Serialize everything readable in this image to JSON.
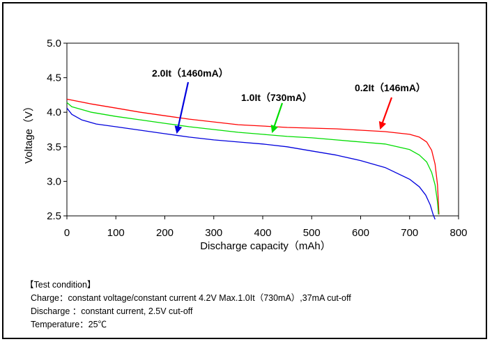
{
  "chart_data": {
    "type": "line",
    "xlabel": "Discharge capacity（mAh）",
    "ylabel": "Voltage（V）",
    "xlim": [
      0,
      800
    ],
    "ylim": [
      2.5,
      5.0
    ],
    "xticks": [
      "0",
      "100",
      "200",
      "300",
      "400",
      "500",
      "600",
      "700",
      "800"
    ],
    "yticks": [
      "2.5",
      "3.0",
      "3.5",
      "4.0",
      "4.5",
      "5.0"
    ],
    "grid": false,
    "series": [
      {
        "name": "0.2It（146mA）",
        "color": "#ff0000",
        "x": [
          0,
          50,
          100,
          150,
          200,
          250,
          300,
          350,
          400,
          450,
          500,
          550,
          600,
          650,
          700,
          720,
          735,
          745,
          752,
          757,
          760
        ],
        "y": [
          4.19,
          4.12,
          4.06,
          4.0,
          3.95,
          3.9,
          3.86,
          3.82,
          3.8,
          3.78,
          3.77,
          3.76,
          3.74,
          3.72,
          3.68,
          3.64,
          3.57,
          3.45,
          3.25,
          2.95,
          2.52
        ]
      },
      {
        "name": "1.0It（730mA）",
        "color": "#00dd00",
        "x": [
          0,
          10,
          50,
          100,
          150,
          200,
          250,
          300,
          350,
          400,
          450,
          500,
          550,
          600,
          650,
          700,
          720,
          735,
          745,
          752,
          757,
          759
        ],
        "y": [
          4.14,
          4.08,
          4.0,
          3.94,
          3.89,
          3.84,
          3.79,
          3.75,
          3.71,
          3.68,
          3.65,
          3.63,
          3.6,
          3.57,
          3.54,
          3.46,
          3.38,
          3.28,
          3.13,
          2.95,
          2.7,
          2.52
        ]
      },
      {
        "name": "2.0It（1460mA）",
        "color": "#0000dd",
        "x": [
          0,
          10,
          30,
          60,
          100,
          150,
          200,
          250,
          300,
          350,
          400,
          450,
          500,
          550,
          600,
          650,
          700,
          720,
          733,
          742,
          748,
          752
        ],
        "y": [
          4.06,
          3.97,
          3.89,
          3.83,
          3.79,
          3.74,
          3.69,
          3.64,
          3.6,
          3.57,
          3.54,
          3.5,
          3.44,
          3.38,
          3.3,
          3.2,
          3.03,
          2.92,
          2.8,
          2.66,
          2.52,
          2.45
        ]
      }
    ],
    "annotations": [
      {
        "text": "2.0It（1460mA）",
        "color": "#0000dd"
      },
      {
        "text": "1.0It（730mA）",
        "color": "#00dd00"
      },
      {
        "text": "0.2It（146mA）",
        "color": "#ff0000"
      }
    ]
  },
  "conditions": {
    "header": "【Test condition】",
    "charge": "Charge：constant voltage/constant current 4.2V Max.1.0It（730mA）,37mA cut-off",
    "discharge": "Discharge  ：constant current, 2.5V cut-off",
    "temperature": "Temperature：25℃"
  }
}
